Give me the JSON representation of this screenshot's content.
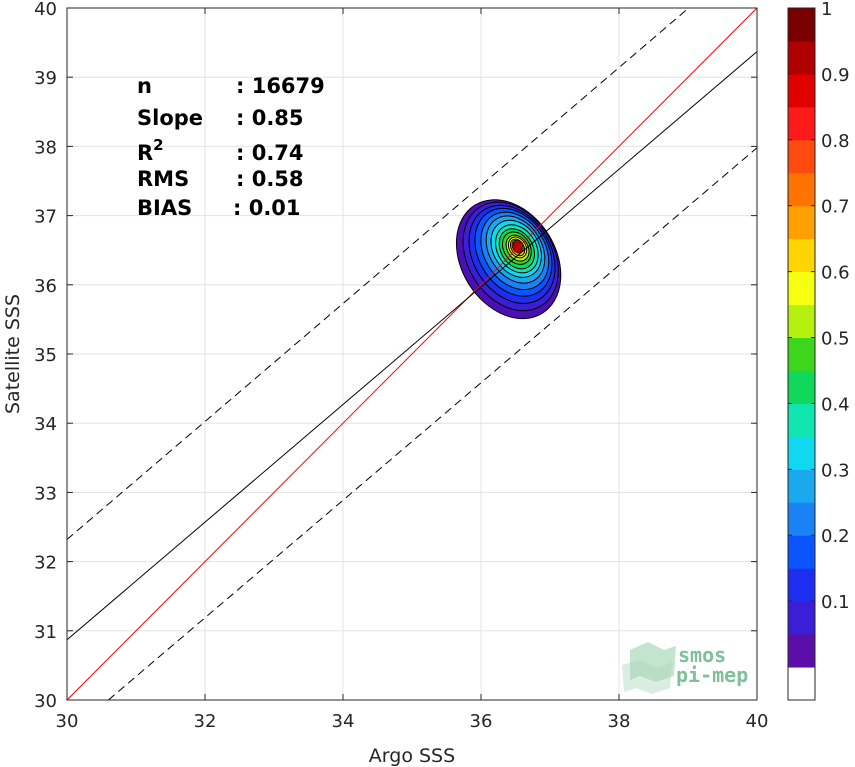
{
  "chart_data": {
    "type": "heatmap",
    "xlabel": "Argo SSS",
    "ylabel": "Satellite SSS",
    "xlim": [
      30,
      40
    ],
    "ylim": [
      30,
      40
    ],
    "xticks": [
      30,
      32,
      34,
      36,
      38,
      40
    ],
    "yticks": [
      30,
      31,
      32,
      33,
      34,
      35,
      36,
      37,
      38,
      39,
      40
    ],
    "grid": true,
    "stats": [
      {
        "label": "n",
        "value": ": 16679"
      },
      {
        "label": "Slope",
        "value": ": 0.85"
      },
      {
        "label": "R",
        "sup": "2",
        "value": ": 0.74"
      },
      {
        "label": "RMS",
        "value": ": 0.58"
      },
      {
        "label": "BIAS",
        "value": ": 0.01"
      }
    ],
    "lines": [
      {
        "kind": "identity",
        "color": "#ff0000",
        "style": "solid",
        "x": [
          30,
          40
        ],
        "y": [
          30,
          40
        ]
      },
      {
        "kind": "regression",
        "color": "#000000",
        "style": "solid",
        "x": [
          30,
          40
        ],
        "y": [
          30.87,
          39.37
        ]
      },
      {
        "kind": "upper-bound",
        "color": "#000000",
        "style": "dashed",
        "x": [
          30,
          39.01
        ],
        "y": [
          32.32,
          40
        ]
      },
      {
        "kind": "lower-bound",
        "color": "#000000",
        "style": "dashed",
        "x": [
          30.6,
          40
        ],
        "y": [
          30,
          37.98
        ]
      }
    ],
    "density": {
      "center": [
        36.52,
        36.52
      ],
      "levels": [
        {
          "level": 0.05,
          "radii": [
            0.68,
            0.92
          ],
          "angle": 58,
          "offset": [
            -0.12,
            -0.15
          ],
          "color": "#4a0fb5"
        },
        {
          "level": 0.1,
          "radii": [
            0.62,
            0.84
          ],
          "angle": 58,
          "offset": [
            -0.09,
            -0.11
          ],
          "color": "#3b1fd6"
        },
        {
          "level": 0.15,
          "radii": [
            0.56,
            0.76
          ],
          "angle": 58,
          "offset": [
            -0.07,
            -0.08
          ],
          "color": "#1e2ef0"
        },
        {
          "level": 0.2,
          "radii": [
            0.5,
            0.68
          ],
          "angle": 58,
          "offset": [
            -0.05,
            -0.05
          ],
          "color": "#0a55ff"
        },
        {
          "level": 0.25,
          "radii": [
            0.44,
            0.6
          ],
          "angle": 58,
          "offset": [
            -0.03,
            -0.03
          ],
          "color": "#1a82f5"
        },
        {
          "level": 0.3,
          "radii": [
            0.38,
            0.52
          ],
          "angle": 58,
          "offset": [
            -0.02,
            -0.01
          ],
          "color": "#1aa8ee"
        },
        {
          "level": 0.35,
          "radii": [
            0.33,
            0.44
          ],
          "angle": 58,
          "offset": [
            -0.01,
            0.0
          ],
          "color": "#10d8f0"
        },
        {
          "level": 0.4,
          "radii": [
            0.28,
            0.37
          ],
          "angle": 58,
          "offset": [
            0.0,
            0.0
          ],
          "color": "#10e6b0"
        },
        {
          "level": 0.45,
          "radii": [
            0.23,
            0.31
          ],
          "angle": 58,
          "offset": [
            0.0,
            0.0
          ],
          "color": "#10d85a"
        },
        {
          "level": 0.5,
          "radii": [
            0.19,
            0.25
          ],
          "angle": 58,
          "offset": [
            0.0,
            0.01
          ],
          "color": "#3ed61c"
        },
        {
          "level": 0.55,
          "radii": [
            0.15,
            0.2
          ],
          "angle": 58,
          "offset": [
            0.01,
            0.01
          ],
          "color": "#b6f00e"
        },
        {
          "level": 0.6,
          "radii": [
            0.12,
            0.16
          ],
          "angle": 58,
          "offset": [
            0.01,
            0.02
          ],
          "color": "#f6ff10"
        },
        {
          "level": 0.65,
          "radii": [
            0.09,
            0.13
          ],
          "angle": 58,
          "offset": [
            0.01,
            0.02
          ],
          "color": "#ffd400"
        },
        {
          "level": 0.7,
          "radii": [
            0.07,
            0.1
          ],
          "angle": 58,
          "offset": [
            0.01,
            0.03
          ],
          "color": "#ffa000"
        },
        {
          "level": 0.75,
          "radii": [
            0.05,
            0.08
          ],
          "angle": 58,
          "offset": [
            0.01,
            0.03
          ],
          "color": "#ff7300"
        },
        {
          "level": 0.8,
          "radii": [
            0.04,
            0.06
          ],
          "angle": 58,
          "offset": [
            0.01,
            0.03
          ],
          "color": "#ff4a10"
        },
        {
          "level": 0.85,
          "radii": [
            0.03,
            0.045
          ],
          "angle": 58,
          "offset": [
            0.01,
            0.03
          ],
          "color": "#ff1a1a"
        },
        {
          "level": 0.9,
          "radii": [
            0.02,
            0.03
          ],
          "angle": 58,
          "offset": [
            0.01,
            0.03
          ],
          "color": "#e00000"
        }
      ]
    },
    "colorbar": {
      "range": [
        0,
        1
      ],
      "ticks": [
        0.1,
        0.2,
        0.3,
        0.4,
        0.5,
        0.6,
        0.7,
        0.8,
        0.9,
        1
      ],
      "tick_labels": [
        "0.1",
        "0.2",
        "0.3",
        "0.4",
        "0.5",
        "0.6",
        "0.7",
        "0.8",
        "0.9",
        "1"
      ],
      "colors": [
        "#ffffff",
        "#5b0ea8",
        "#3b1fd6",
        "#1e2ef0",
        "#0a55ff",
        "#1a82f5",
        "#1aa8ee",
        "#10d8f0",
        "#10e6b0",
        "#10d85a",
        "#3ed61c",
        "#b6f00e",
        "#f6ff10",
        "#ffd400",
        "#ffa000",
        "#ff7300",
        "#ff4a10",
        "#ff1a1a",
        "#e00000",
        "#b00000",
        "#7a0000"
      ]
    }
  },
  "logo": {
    "line1": "smos",
    "line2": "pi-mep"
  }
}
